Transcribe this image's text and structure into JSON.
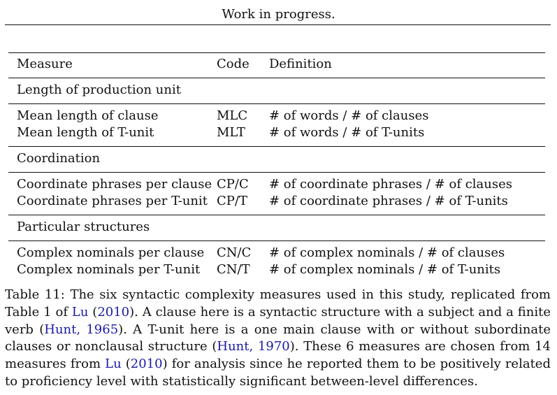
{
  "header": {
    "title": "Work in progress."
  },
  "table": {
    "columns": [
      "Measure",
      "Code",
      "Definition"
    ],
    "sections": [
      {
        "title": "Length of production unit",
        "rows": [
          {
            "measure": "Mean length of clause",
            "code": "MLC",
            "definition": "# of words / # of clauses"
          },
          {
            "measure": "Mean length of T-unit",
            "code": "MLT",
            "definition": "# of words / # of T-units"
          }
        ]
      },
      {
        "title": "Coordination",
        "rows": [
          {
            "measure": "Coordinate phrases per clause",
            "code": "CP/C",
            "definition": "# of coordinate phrases / # of clauses"
          },
          {
            "measure": "Coordinate phrases per T-unit",
            "code": "CP/T",
            "definition": "# of coordinate phrases / # of T-units"
          }
        ]
      },
      {
        "title": "Particular structures",
        "rows": [
          {
            "measure": "Complex nominals per clause",
            "code": "CN/C",
            "definition": "# of complex nominals / # of clauses"
          },
          {
            "measure": "Complex nominals per T-unit",
            "code": "CN/T",
            "definition": "# of complex nominals / # of T-units"
          }
        ]
      }
    ]
  },
  "caption": {
    "t1": "Table 11: The six syntactic complexity measures used in this study, replicated from Table 1 of ",
    "c1": "Lu",
    "t2": " (",
    "c2": "2010",
    "t3": "). A clause here is a syntactic structure with a subject and a finite verb (",
    "c3": "Hunt, 1965",
    "t4": "). A T-unit here is a one main clause with or without subordinate clauses or nonclausal structure  (",
    "c4": "Hunt, 1970",
    "t5": "). These 6 measures are chosen from 14 measures from ",
    "c5": "Lu",
    "t6": " (",
    "c6": "2010",
    "t7": ") for analysis since he reported them to be positively related to proficiency level with statistically significant between-level differences."
  },
  "colors": {
    "text": "#111111",
    "citation": "#1a1aa6"
  }
}
